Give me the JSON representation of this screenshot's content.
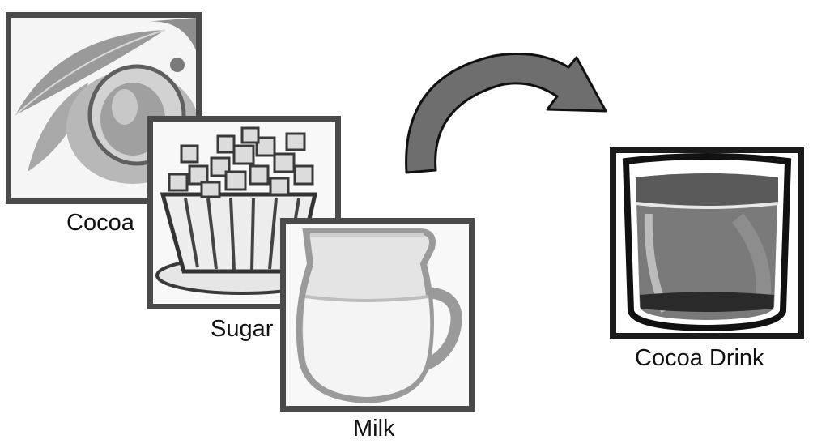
{
  "ingredients": [
    {
      "label": "Cocoa",
      "icon": "cocoa-pod-icon"
    },
    {
      "label": "Sugar",
      "icon": "sugar-cupcake-icon"
    },
    {
      "label": "Milk",
      "icon": "milk-pitcher-icon"
    }
  ],
  "result": {
    "label": "Cocoa Drink",
    "icon": "cocoa-glass-icon"
  },
  "arrow": {
    "icon": "curved-arrow-icon"
  },
  "colors": {
    "frame": "#4a4a4a",
    "arrow": "#6e6e6e",
    "background": "#ffffff"
  }
}
